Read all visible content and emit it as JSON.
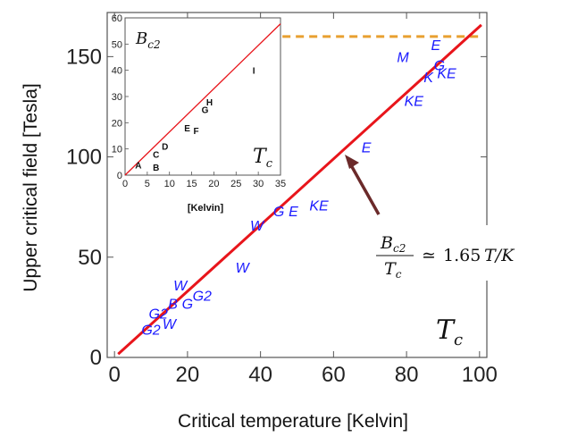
{
  "chart_data": [
    {
      "type": "scatter",
      "title": "",
      "xlabel": "Critical temperature [Kelvin]",
      "ylabel": "Upper critical field [Tesla]",
      "xlim": [
        -2,
        102
      ],
      "ylim": [
        0,
        172
      ],
      "xticks": [
        0,
        20,
        40,
        60,
        80,
        100
      ],
      "yticks": [
        0,
        50,
        100,
        150
      ],
      "fit_line": {
        "slope": 1.65,
        "intercept": 0,
        "color": "#e8151b"
      },
      "reference_line": {
        "y": 160,
        "x_start": 46,
        "x_end": 101,
        "color": "#e8a030",
        "style": "dashed"
      },
      "points": [
        {
          "label": "E",
          "x": 88,
          "y": 156
        },
        {
          "label": "M",
          "x": 79,
          "y": 150
        },
        {
          "label": "G",
          "x": 89,
          "y": 146
        },
        {
          "label": "K",
          "x": 86,
          "y": 140
        },
        {
          "label": "KE",
          "x": 91,
          "y": 142
        },
        {
          "label": "KE",
          "x": 82,
          "y": 128
        },
        {
          "label": "E",
          "x": 69,
          "y": 105
        },
        {
          "label": "KE",
          "x": 56,
          "y": 76
        },
        {
          "label": "G",
          "x": 45,
          "y": 73
        },
        {
          "label": "E",
          "x": 49,
          "y": 73
        },
        {
          "label": "W",
          "x": 39,
          "y": 66
        },
        {
          "label": "W",
          "x": 35,
          "y": 45
        },
        {
          "label": "W",
          "x": 18,
          "y": 36
        },
        {
          "label": "G2",
          "x": 24,
          "y": 31
        },
        {
          "label": "B",
          "x": 16,
          "y": 27
        },
        {
          "label": "G",
          "x": 20,
          "y": 27
        },
        {
          "label": "G2",
          "x": 12,
          "y": 22
        },
        {
          "label": "W",
          "x": 15,
          "y": 17
        },
        {
          "label": "G2",
          "x": 10,
          "y": 14
        }
      ],
      "annotation": {
        "num": "B",
        "num_sub": "c2",
        "den": "T",
        "den_sub": "c",
        "rel": "≃",
        "value": "1.65",
        "unit": "T/K"
      },
      "corner_label": {
        "main": "T",
        "sub": "c"
      },
      "arrow_color": "#6b2a2a"
    },
    {
      "type": "scatter",
      "title": "",
      "xlabel": "[Kelvin]",
      "ylabel": "",
      "xlim": [
        0,
        35
      ],
      "ylim": [
        0,
        60
      ],
      "xticks": [
        0,
        5,
        10,
        15,
        20,
        25,
        30,
        35
      ],
      "yticks": [
        0,
        10,
        20,
        30,
        40,
        50,
        60
      ],
      "fit_line": {
        "slope": 1.65,
        "intercept": 0,
        "color": "#e8151b"
      },
      "points": [
        {
          "label": "A",
          "x": 3,
          "y": 4
        },
        {
          "label": "B",
          "x": 7,
          "y": 3
        },
        {
          "label": "C",
          "x": 7,
          "y": 8
        },
        {
          "label": "D",
          "x": 9,
          "y": 11
        },
        {
          "label": "E",
          "x": 14,
          "y": 18
        },
        {
          "label": "F",
          "x": 16,
          "y": 17
        },
        {
          "label": "G",
          "x": 18,
          "y": 25
        },
        {
          "label": "H",
          "x": 19,
          "y": 28
        },
        {
          "label": "I",
          "x": 29,
          "y": 40
        }
      ],
      "top_label": {
        "main": "B",
        "sub": "c2"
      },
      "corner_label": {
        "main": "T",
        "sub": "c"
      }
    }
  ]
}
